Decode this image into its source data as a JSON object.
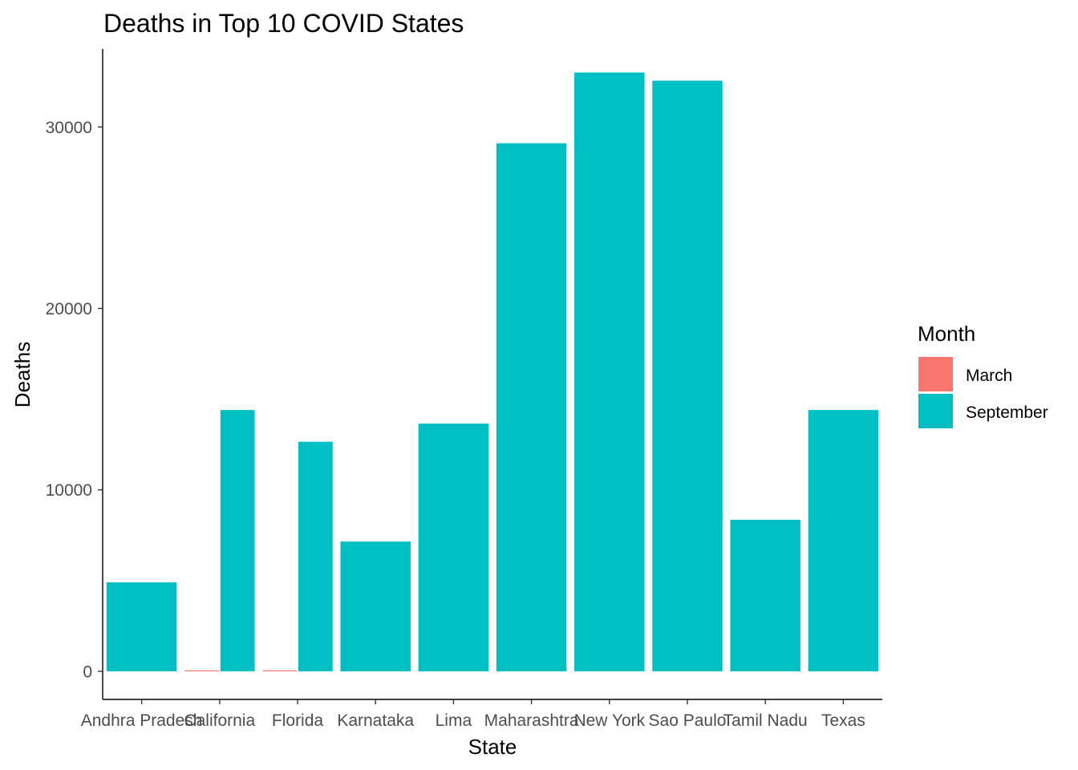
{
  "chart_data": {
    "type": "bar",
    "title": "Deaths in Top 10 COVID States",
    "xlabel": "State",
    "ylabel": "Deaths",
    "ylim": [
      -1550,
      34300
    ],
    "yticks": [
      0,
      10000,
      20000,
      30000
    ],
    "categories": [
      "Andhra Pradesh",
      "California",
      "Florida",
      "Karnataka",
      "Lima",
      "Maharashtra",
      "New York",
      "Sao Paulo",
      "Tamil Nadu",
      "Texas"
    ],
    "legend": {
      "title": "Month",
      "position": "right"
    },
    "series": [
      {
        "name": "March",
        "color": "#F8766D",
        "values": [
          null,
          20,
          20,
          null,
          null,
          null,
          null,
          null,
          null,
          null
        ]
      },
      {
        "name": "September",
        "color": "#00BFC4",
        "values": [
          4900,
          14400,
          12650,
          7150,
          13650,
          29100,
          33000,
          32550,
          8350,
          14400
        ]
      }
    ],
    "grid": false
  }
}
